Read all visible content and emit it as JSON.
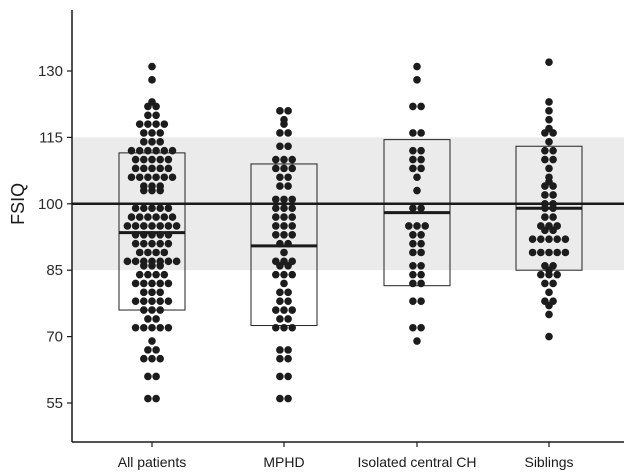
{
  "chart_data": {
    "type": "scatter",
    "ylabel": "FSIQ",
    "ylim": [
      45,
      148
    ],
    "yticks": [
      55,
      70,
      85,
      100,
      115,
      130
    ],
    "reference_line": 100,
    "reference_band": [
      85,
      115
    ],
    "categories": [
      "All patients",
      "MPHD",
      "Isolated central CH",
      "Siblings"
    ],
    "boxes": [
      {
        "category": "All patients",
        "low": 76,
        "high": 111.5,
        "median": 93.5
      },
      {
        "category": "MPHD",
        "low": 72.5,
        "high": 109,
        "median": 90.5
      },
      {
        "category": "Isolated central CH",
        "low": 81.5,
        "high": 114.5,
        "median": 98
      },
      {
        "category": "Siblings",
        "low": 85,
        "high": 113,
        "median": 99
      }
    ],
    "series": [
      {
        "category": "All patients",
        "values": [
          131,
          128,
          123,
          122,
          122,
          120,
          120,
          118,
          118,
          118,
          118,
          116,
          116,
          116,
          114,
          114,
          114,
          112,
          112,
          112,
          112,
          112,
          112,
          110,
          110,
          110,
          110,
          110,
          108,
          108,
          108,
          108,
          108,
          106,
          106,
          106,
          106,
          106,
          106,
          104,
          104,
          104,
          103,
          103,
          103,
          99,
          99,
          99,
          99,
          99,
          97,
          97,
          97,
          97,
          97,
          97,
          95,
          95,
          95,
          95,
          95,
          95,
          95,
          93,
          93,
          93,
          93,
          93,
          91,
          91,
          91,
          91,
          91,
          89,
          89,
          89,
          89,
          87,
          87,
          87,
          87,
          87,
          87,
          87,
          86,
          86,
          86,
          84,
          84,
          84,
          84,
          82,
          82,
          82,
          82,
          82,
          80,
          80,
          80,
          78,
          78,
          78,
          78,
          78,
          76,
          76,
          76,
          74,
          74,
          72,
          72,
          72,
          72,
          72,
          69,
          67,
          67,
          65,
          65,
          65,
          61,
          61,
          56,
          56
        ]
      },
      {
        "category": "MPHD",
        "values": [
          121,
          121,
          119,
          118,
          116,
          116,
          113,
          113,
          110,
          110,
          110,
          108,
          108,
          108,
          106,
          106,
          104,
          104,
          101,
          101,
          101,
          99,
          99,
          99,
          97,
          97,
          97,
          95,
          95,
          95,
          93,
          93,
          93,
          91,
          91,
          89,
          87,
          87,
          87,
          86,
          86,
          84,
          84,
          84,
          82,
          80,
          80,
          78,
          78,
          76,
          76,
          76,
          74,
          74,
          72,
          72,
          72,
          67,
          67,
          65,
          65,
          61,
          61,
          56,
          56
        ]
      },
      {
        "category": "Isolated central CH",
        "values": [
          131,
          128,
          122,
          122,
          116,
          116,
          112,
          112,
          110,
          110,
          108,
          108,
          106,
          103,
          99,
          99,
          95,
          95,
          95,
          93,
          93,
          91,
          91,
          89,
          89,
          86,
          86,
          84,
          84,
          82,
          82,
          78,
          78,
          72,
          72,
          69
        ]
      },
      {
        "category": "Siblings",
        "values": [
          132,
          123,
          121,
          119,
          117,
          116,
          116,
          114,
          112,
          112,
          110,
          110,
          108,
          106,
          105,
          104,
          104,
          102,
          102,
          100,
          100,
          99,
          99,
          97,
          97,
          95,
          95,
          95,
          94,
          94,
          92,
          92,
          92,
          92,
          92,
          89,
          89,
          89,
          89,
          89,
          86,
          86,
          85,
          84,
          84,
          84,
          82,
          82,
          80,
          78,
          78,
          77,
          75,
          70
        ]
      }
    ],
    "grid": false,
    "legend": "none"
  }
}
